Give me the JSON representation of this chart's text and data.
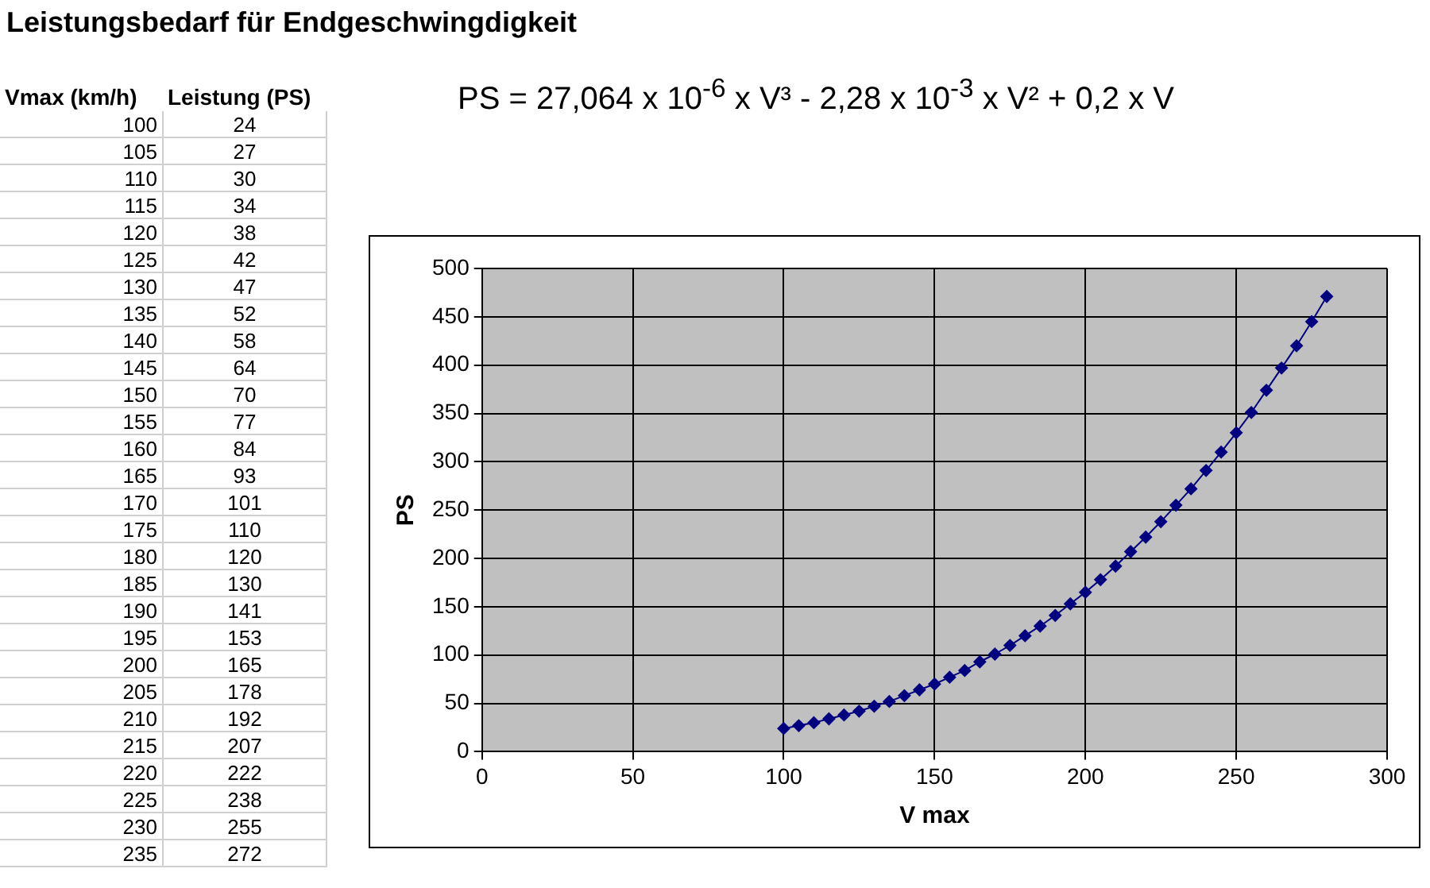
{
  "chart_data": [
    {
      "type": "heatmap",
      "title": "Leistungsbedarf für Endgeschwingdigkeit",
      "ylabel": "Vmax (km/h)",
      "categories": [
        "Leistung (PS)"
      ],
      "y_categories": [
        "100",
        "105",
        "110",
        "115",
        "120",
        "125",
        "130",
        "135",
        "140",
        "145",
        "150",
        "155",
        "160",
        "165",
        "170",
        "175",
        "180",
        "185",
        "190",
        "195",
        "200",
        "205",
        "210",
        "215",
        "220",
        "225",
        "230",
        "235"
      ],
      "cells": [
        [
          24
        ],
        [
          27
        ],
        [
          30
        ],
        [
          34
        ],
        [
          38
        ],
        [
          42
        ],
        [
          47
        ],
        [
          52
        ],
        [
          58
        ],
        [
          64
        ],
        [
          70
        ],
        [
          77
        ],
        [
          84
        ],
        [
          93
        ],
        [
          101
        ],
        [
          110
        ],
        [
          120
        ],
        [
          130
        ],
        [
          141
        ],
        [
          153
        ],
        [
          165
        ],
        [
          178
        ],
        [
          192
        ],
        [
          207
        ],
        [
          222
        ],
        [
          238
        ],
        [
          255
        ],
        [
          272
        ]
      ],
      "data_labels": true
    },
    {
      "type": "line",
      "xlabel": "V max",
      "ylabel": "PS",
      "annotations": [
        "PS = 27,064 x 10$^{-6}$ x V³ - 2,28 x 10$^{-3}$ x V² + 0,2 x V"
      ],
      "x": [
        100,
        105,
        110,
        115,
        120,
        125,
        130,
        135,
        140,
        145,
        150,
        155,
        160,
        165,
        170,
        175,
        180,
        185,
        190,
        195,
        200,
        205,
        210,
        215,
        220,
        225,
        230,
        235,
        240,
        245,
        250,
        255,
        260,
        265,
        270,
        275,
        280
      ],
      "series": [
        {
          "color": "#000080",
          "values": [
            24,
            27,
            30,
            34,
            38,
            42,
            47,
            52,
            58,
            64,
            70,
            77,
            84,
            93,
            101,
            110,
            120,
            130,
            141,
            153,
            165,
            178,
            192,
            207,
            222,
            238,
            255,
            272,
            291,
            310,
            330,
            351,
            374,
            397,
            420,
            445,
            471
          ]
        }
      ],
      "xlim": [
        0,
        300
      ],
      "xticks": [
        0,
        50,
        100,
        150,
        200,
        250,
        300
      ],
      "ylim": [
        0,
        500
      ],
      "yticks": [
        0,
        50,
        100,
        150,
        200,
        250,
        300,
        350,
        400,
        450,
        500
      ],
      "grid": true,
      "legend": false,
      "marker": "diamond",
      "line_style": "solid"
    }
  ]
}
